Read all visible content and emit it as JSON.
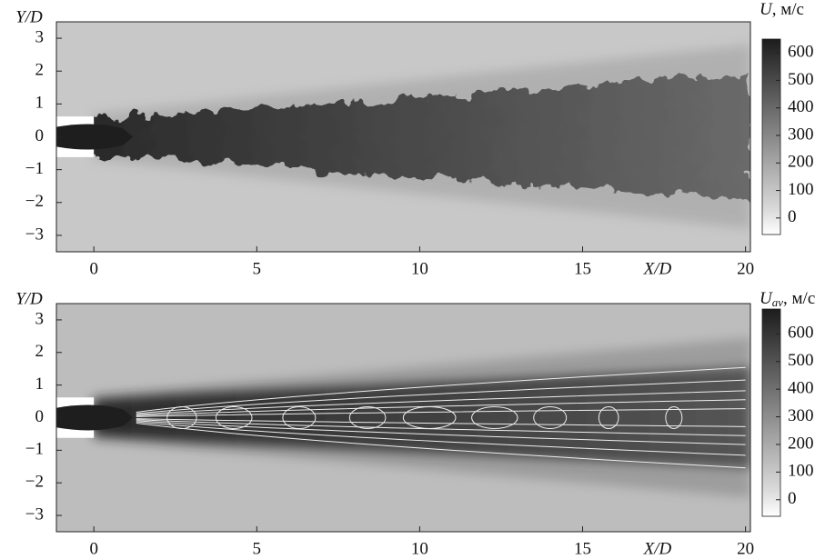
{
  "chart_data": [
    {
      "type": "field",
      "x_label": "X/D",
      "y_label": "Y/D",
      "xlim": [
        -1.15,
        20.15
      ],
      "ylim": [
        -3.5,
        3.5
      ],
      "xticks": [
        0,
        5,
        10,
        15,
        20
      ],
      "yticks": [
        {
          "value": -3,
          "label": "−3"
        },
        {
          "value": -2,
          "label": "−2"
        },
        {
          "value": -1,
          "label": "−1"
        },
        0,
        1,
        2,
        3
      ],
      "colorbar": {
        "symbol": "U",
        "subscript": null,
        "unit": ", м/с",
        "lim": [
          -60,
          650
        ],
        "ticks": [
          0,
          100,
          200,
          300,
          400,
          500,
          600
        ]
      }
    },
    {
      "type": "field",
      "x_label": "X/D",
      "y_label": "Y/D",
      "xlim": [
        -1.15,
        20.15
      ],
      "ylim": [
        -3.5,
        3.5
      ],
      "xticks": [
        0,
        5,
        10,
        15,
        20
      ],
      "yticks": [
        {
          "value": -3,
          "label": "−3"
        },
        {
          "value": -2,
          "label": "−2"
        },
        {
          "value": -1,
          "label": "−1"
        },
        0,
        1,
        2,
        3
      ],
      "colorbar": {
        "symbol": "U",
        "subscript": "av",
        "unit": ", м/с",
        "lim": [
          -60,
          690
        ],
        "ticks": [
          0,
          100,
          200,
          300,
          400,
          500,
          600
        ]
      }
    }
  ]
}
